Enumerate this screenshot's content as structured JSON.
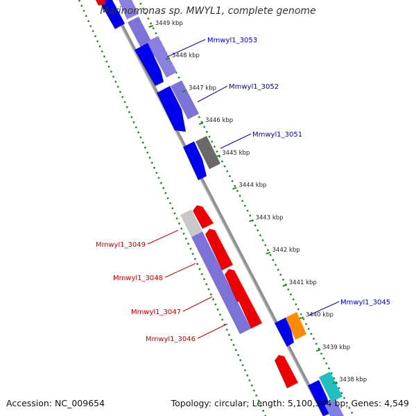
{
  "title": "Marinomonas sp. MWYL1, complete genome",
  "accession": "Accession: NC_009654",
  "summary": "Topology: circular; Length: 5,100,344 bp; Genes: 4,549",
  "colors": {
    "backbone": "#808080",
    "tick": "#228b22",
    "forward_label": "#0000cc",
    "reverse_label": "#cc0000"
  },
  "ruler": [
    {
      "label": "3449 kbp",
      "kbp": 3449
    },
    {
      "label": "3448 kbp",
      "kbp": 3448
    },
    {
      "label": "3447 kbp",
      "kbp": 3447
    },
    {
      "label": "3446 kbp",
      "kbp": 3446
    },
    {
      "label": "3445 kbp",
      "kbp": 3445
    },
    {
      "label": "3444 kbp",
      "kbp": 3444
    },
    {
      "label": "3443 kbp",
      "kbp": 3443
    },
    {
      "label": "3442 kbp",
      "kbp": 3442
    },
    {
      "label": "3441 kbp",
      "kbp": 3441
    },
    {
      "label": "3440 kbp",
      "kbp": 3440
    },
    {
      "label": "3439 kbp",
      "kbp": 3439
    },
    {
      "label": "3438 kbp",
      "kbp": 3438
    }
  ],
  "gene_labels": [
    {
      "name": "Mmwyl1_3053",
      "strand": "forward"
    },
    {
      "name": "Mmwyl1_3052",
      "strand": "forward"
    },
    {
      "name": "Mmwyl1_3051",
      "strand": "forward"
    },
    {
      "name": "Mmwyl1_3045",
      "strand": "forward"
    },
    {
      "name": "Mmwyl1_3049",
      "strand": "reverse"
    },
    {
      "name": "Mmwyl1_3048",
      "strand": "reverse"
    },
    {
      "name": "Mmwyl1_3047",
      "strand": "reverse"
    },
    {
      "name": "Mmwyl1_3046",
      "strand": "reverse"
    }
  ]
}
